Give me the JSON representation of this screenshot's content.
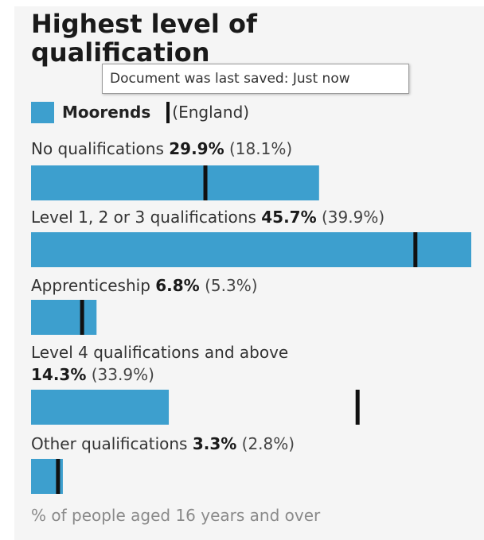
{
  "title": "Highest level of qualification",
  "tooltip": "Document was last saved: Just now",
  "legend": {
    "main": "Moorends",
    "compare": "(England)"
  },
  "footnote": "% of people aged 16 years and over",
  "colors": {
    "bar": "#3d9fce",
    "marker": "#111111"
  },
  "chart_data": {
    "type": "bar",
    "orientation": "horizontal",
    "title": "Highest level of qualification",
    "categories": [
      "No qualifications",
      "Level 1, 2 or 3 qualifications",
      "Apprenticeship",
      "Level 4 qualifications and above",
      "Other qualifications"
    ],
    "series": [
      {
        "name": "Moorends",
        "values": [
          29.9,
          45.7,
          6.8,
          14.3,
          3.3
        ]
      },
      {
        "name": "England",
        "values": [
          18.1,
          39.9,
          5.3,
          33.9,
          2.8
        ]
      }
    ],
    "value_labels": {
      "main": [
        "29.9%",
        "45.7%",
        "6.8%",
        "14.3%",
        "3.3%"
      ],
      "compare": [
        "(18.1%)",
        "(39.9%)",
        "(5.3%)",
        "(33.9%)",
        "(2.8%)"
      ]
    },
    "ylabel": "% of people aged 16 years and over",
    "xlim": [
      0,
      45.7
    ]
  }
}
